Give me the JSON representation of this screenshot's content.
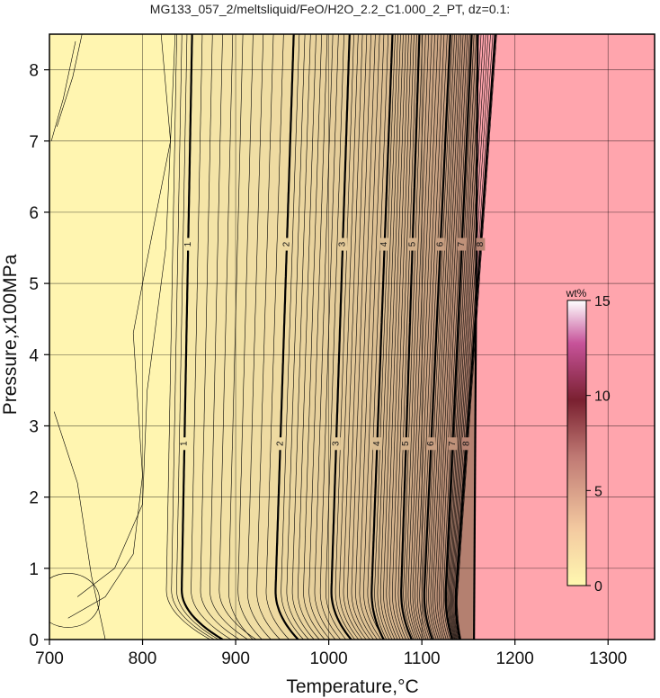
{
  "chart_data": {
    "type": "contour",
    "title": "MG133_057_2/meltsliquid/FeO/H2O_2.2_C1.000_2_PT, dz=0.1:",
    "xlabel": "Temperature,°C",
    "ylabel": "Pressure,x100MPa",
    "xlim": [
      700,
      1350
    ],
    "ylim": [
      0,
      8.5
    ],
    "xticks": [
      700,
      800,
      900,
      1000,
      1100,
      1200,
      1300
    ],
    "yticks": [
      0,
      1,
      2,
      3,
      4,
      5,
      6,
      7,
      8
    ],
    "grid": true,
    "contour_interval": 0.1,
    "labeled_contours": [
      {
        "level": 1,
        "t_at_p_high": 849,
        "t_at_p_mid": 845
      },
      {
        "level": 2,
        "t_at_p_high": 955,
        "t_at_p_mid": 948
      },
      {
        "level": 3,
        "t_at_p_high": 1015,
        "t_at_p_mid": 1008
      },
      {
        "level": 4,
        "t_at_p_high": 1060,
        "t_at_p_mid": 1052
      },
      {
        "level": 5,
        "t_at_p_high": 1090,
        "t_at_p_mid": 1083
      },
      {
        "level": 6,
        "t_at_p_high": 1120,
        "t_at_p_mid": 1110
      },
      {
        "level": 7,
        "t_at_p_high": 1143,
        "t_at_p_mid": 1133
      },
      {
        "level": 8,
        "t_at_p_high": 1163,
        "t_at_p_mid": 1148
      }
    ],
    "contour_label_text": [
      "1",
      "2",
      "3",
      "4",
      "5",
      "6",
      "7",
      "8"
    ],
    "liquidus_boundary": [
      {
        "t": 1156,
        "p": 0
      },
      {
        "t": 1160,
        "p": 8.5
      }
    ],
    "colorbar": {
      "unit": "wt%",
      "range": [
        0,
        15
      ],
      "ticks": [
        0,
        5,
        10,
        15
      ],
      "colors": [
        "#fff8b0",
        "#f3c9a0",
        "#c07a74",
        "#7a2030",
        "#c7539a",
        "#ffffff"
      ]
    },
    "colors": {
      "low_fill": "#fff5b0",
      "beyond_liquidus": "#ffa5ad",
      "contour_line": "#000000",
      "grid": "#000000"
    }
  }
}
